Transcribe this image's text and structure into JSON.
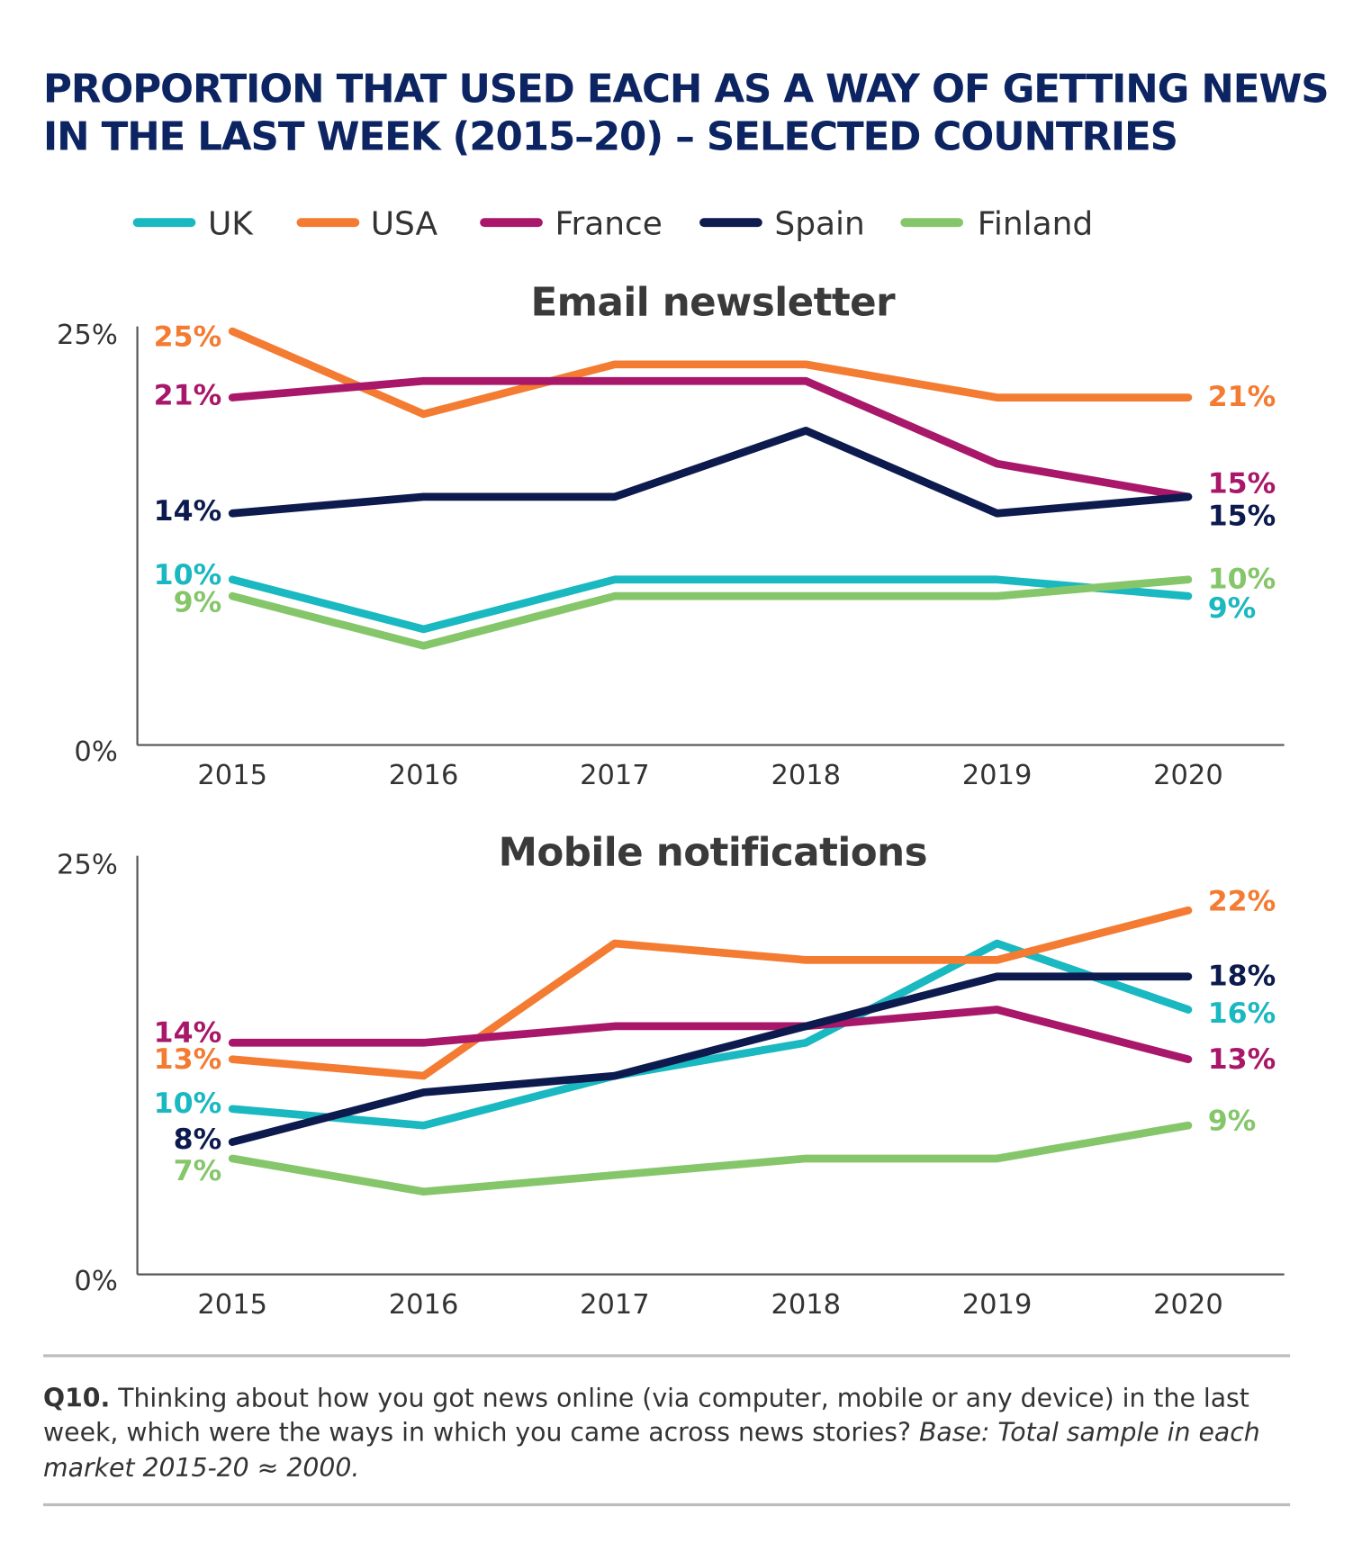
{
  "title": [
    "PROPORTION THAT USED EACH AS A WAY OF GETTING NEWS",
    "IN THE LAST WEEK (2015–20) – SELECTED COUNTRIES"
  ],
  "legend": [
    {
      "name": "UK",
      "color": "#1ab8c0"
    },
    {
      "name": "USA",
      "color": "#f47b32"
    },
    {
      "name": "France",
      "color": "#a8176a"
    },
    {
      "name": "Spain",
      "color": "#0d1a4e"
    },
    {
      "name": "Finland",
      "color": "#86c66a"
    }
  ],
  "chart_data": [
    {
      "type": "line",
      "title": "Email newsletter",
      "categories": [
        "2015",
        "2016",
        "2017",
        "2018",
        "2019",
        "2020"
      ],
      "ylim": [
        0,
        25
      ],
      "yticks": [
        "0%",
        "25%"
      ],
      "grid": false,
      "legend": "top",
      "series": [
        {
          "name": "UK",
          "values": [
            10,
            7,
            10,
            10,
            10,
            9
          ]
        },
        {
          "name": "USA",
          "values": [
            25,
            20,
            23,
            23,
            21,
            21
          ]
        },
        {
          "name": "France",
          "values": [
            21,
            22,
            22,
            22,
            17,
            15
          ]
        },
        {
          "name": "Spain",
          "values": [
            14,
            15,
            15,
            19,
            14,
            15
          ]
        },
        {
          "name": "Finland",
          "values": [
            9,
            6,
            9,
            9,
            9,
            10
          ]
        }
      ]
    },
    {
      "type": "line",
      "title": "Mobile notifications",
      "categories": [
        "2015",
        "2016",
        "2017",
        "2018",
        "2019",
        "2020"
      ],
      "ylim": [
        0,
        25
      ],
      "yticks": [
        "0%",
        "25%"
      ],
      "grid": false,
      "legend": "top",
      "series": [
        {
          "name": "UK",
          "values": [
            10,
            9,
            12,
            14,
            20,
            16
          ]
        },
        {
          "name": "USA",
          "values": [
            13,
            12,
            20,
            19,
            19,
            22
          ]
        },
        {
          "name": "France",
          "values": [
            14,
            14,
            15,
            15,
            16,
            13
          ]
        },
        {
          "name": "Spain",
          "values": [
            8,
            11,
            12,
            15,
            18,
            18
          ]
        },
        {
          "name": "Finland",
          "values": [
            7,
            5,
            6,
            7,
            7,
            9
          ]
        }
      ]
    }
  ],
  "footnote": {
    "q": "Q10.",
    "line1": " Thinking about how you got news online (via computer, mobile or any device) in the last",
    "line2a": "week, which were the ways in which you came across news stories? ",
    "line2b": "Base: Total sample in each",
    "line3": "market 2015-20 ≈ 2000."
  }
}
